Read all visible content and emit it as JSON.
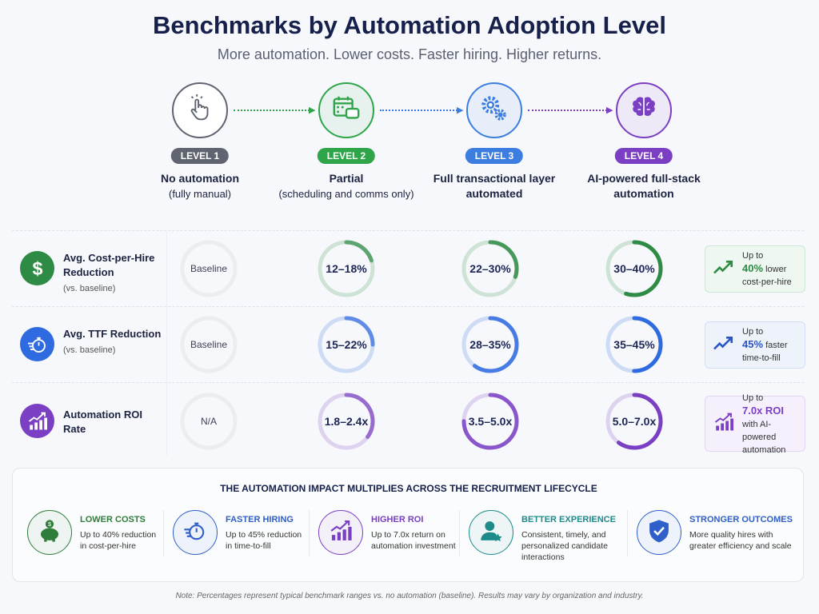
{
  "title": "Benchmarks by Automation Adoption Level",
  "subtitle": "More automation. Lower costs. Faster hiring. Higher returns.",
  "levels": [
    {
      "badge": "LEVEL 1",
      "title": "No automation",
      "sub": "(fully manual)",
      "color": "#5f6470",
      "icon": "hand-pointer-icon"
    },
    {
      "badge": "LEVEL 2",
      "title": "Partial",
      "sub": "(scheduling and comms only)",
      "color": "#2fa54a",
      "icon": "calendar-chat-icon"
    },
    {
      "badge": "LEVEL 3",
      "title": "Full transactional layer automated",
      "sub": "",
      "color": "#3b7ee0",
      "icon": "gears-icon"
    },
    {
      "badge": "LEVEL 4",
      "title": "AI-powered full-stack automation",
      "sub": "",
      "color": "#7b3fc4",
      "icon": "brain-icon"
    }
  ],
  "rows": [
    {
      "label": "Avg. Cost-per-Hire Reduction",
      "sub": "(vs. baseline)",
      "icon": "dollar-icon",
      "color": "#2e8b45",
      "values": [
        "Baseline",
        "12–18%",
        "22–30%",
        "30–40%"
      ],
      "fill": [
        0,
        0.2,
        0.3,
        0.55
      ],
      "callout": {
        "pre": "Up to",
        "strong": "40%",
        "post": "lower cost-per-hire",
        "icon": "trend-up-icon",
        "color": "#2e8b45",
        "bg": "#eef7f0",
        "border": "#cfe6d5"
      }
    },
    {
      "label": "Avg. TTF Reduction",
      "sub": "(vs. baseline)",
      "icon": "stopwatch-icon",
      "color": "#2f6be0",
      "values": [
        "Baseline",
        "15–22%",
        "28–35%",
        "35–45%"
      ],
      "fill": [
        0,
        0.25,
        0.6,
        0.5
      ],
      "callout": {
        "pre": "Up to",
        "strong": "45%",
        "post": "faster time-to-fill",
        "icon": "trend-up-icon",
        "color": "#2a55c4",
        "bg": "#edf2fb",
        "border": "#d3def3"
      }
    },
    {
      "label": "Automation ROI Rate",
      "sub": "",
      "icon": "bar-chart-up-icon",
      "color": "#7b3fc4",
      "values": [
        "N/A",
        "1.8–2.4x",
        "3.5–5.0x",
        "5.0–7.0x"
      ],
      "fill": [
        0,
        0.35,
        0.75,
        0.6
      ],
      "callout": {
        "pre": "Up to",
        "strong": "7.0x ROI",
        "post": "with AI-powered automation",
        "icon": "bar-chart-up-icon",
        "color": "#7b3fc4",
        "bg": "#f5f0fb",
        "border": "#e2d6f1"
      }
    }
  ],
  "bottom": {
    "title": "THE AUTOMATION IMPACT MULTIPLIES ACROSS THE RECRUITMENT LIFECYCLE",
    "items": [
      {
        "head": "LOWER COSTS",
        "desc": "Up to 40% reduction in cost-per-hire",
        "color": "#2e7d3a",
        "icon": "piggy-bank-icon"
      },
      {
        "head": "FASTER HIRING",
        "desc": "Up to 45% reduction in time-to-fill",
        "color": "#2f5fc8",
        "icon": "stopwatch-icon"
      },
      {
        "head": "HIGHER ROI",
        "desc": "Up to 7.0x return on automation investment",
        "color": "#7b3fc4",
        "icon": "bar-chart-up-icon"
      },
      {
        "head": "BETTER EXPERIENCE",
        "desc": "Consistent, timely, and personalized candidate interactions",
        "color": "#1f8a8a",
        "icon": "user-star-icon"
      },
      {
        "head": "STRONGER OUTCOMES",
        "desc": "More quality hires with greater efficiency and scale",
        "color": "#2f5fc8",
        "icon": "shield-check-icon"
      }
    ]
  },
  "note": "Note: Percentages represent typical benchmark ranges vs. no automation (baseline). Results may vary by organization and industry."
}
